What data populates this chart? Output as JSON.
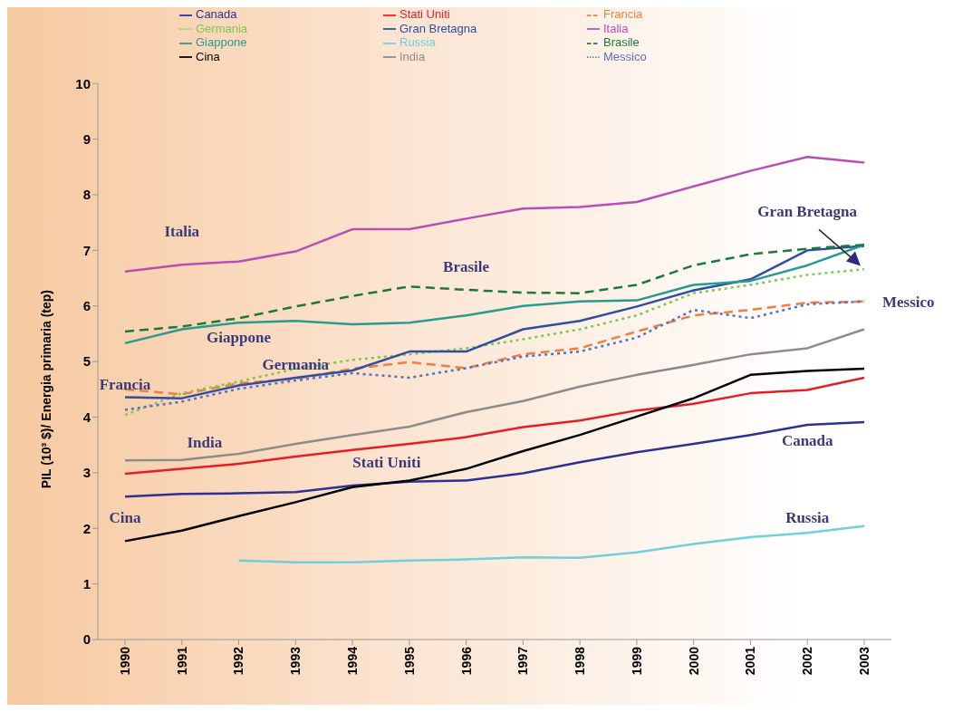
{
  "chart_data": {
    "type": "line",
    "ylabel": "PIL (10³ $)/ Energia primaria (tep)",
    "categories": [
      "1990",
      "1991",
      "1992",
      "1993",
      "1994",
      "1995",
      "1996",
      "1997",
      "1998",
      "1999",
      "2000",
      "2001",
      "2002",
      "2003"
    ],
    "ylim": [
      0,
      10
    ],
    "yticks": [
      0,
      1,
      2,
      3,
      4,
      5,
      6,
      7,
      8,
      9,
      10
    ],
    "grid": false,
    "legend": "top",
    "marker": "none",
    "series": [
      {
        "name": "Canada",
        "color": "#2e3192",
        "values": [
          2.57,
          2.62,
          2.63,
          2.65,
          2.77,
          2.84,
          2.86,
          2.99,
          3.19,
          3.37,
          3.52,
          3.68,
          3.86,
          3.91
        ]
      },
      {
        "name": "Stati Uniti",
        "color": "#e41e26",
        "values": [
          2.98,
          3.07,
          3.16,
          3.29,
          3.41,
          3.52,
          3.64,
          3.82,
          3.94,
          4.12,
          4.24,
          4.43,
          4.49,
          4.71
        ]
      },
      {
        "name": "Francia",
        "color": "#f07f3c",
        "line_style": "dashed",
        "values": [
          4.5,
          4.41,
          4.61,
          4.69,
          4.87,
          4.99,
          4.88,
          5.13,
          5.24,
          5.54,
          5.83,
          5.93,
          6.06,
          6.08
        ]
      },
      {
        "name": "Germania",
        "color": "#7ec850",
        "line_style": "dotted",
        "values": [
          4.04,
          4.43,
          4.64,
          4.87,
          5.03,
          5.13,
          5.24,
          5.4,
          5.58,
          5.83,
          6.23,
          6.38,
          6.56,
          6.66
        ]
      },
      {
        "name": "Gran Bretagna",
        "color": "#2e4ea0",
        "values": [
          4.36,
          4.34,
          4.57,
          4.71,
          4.84,
          5.18,
          5.18,
          5.58,
          5.73,
          5.99,
          6.28,
          6.48,
          7.0,
          7.08
        ]
      },
      {
        "name": "Italia",
        "color": "#b84fb5",
        "values": [
          6.62,
          6.74,
          6.8,
          6.98,
          7.38,
          7.38,
          7.57,
          7.75,
          7.78,
          7.87,
          8.15,
          8.43,
          8.68,
          8.58
        ]
      },
      {
        "name": "Giappone",
        "color": "#2a9a8e",
        "values": [
          5.33,
          5.58,
          5.7,
          5.73,
          5.67,
          5.7,
          5.83,
          6.0,
          6.08,
          6.1,
          6.38,
          6.45,
          6.73,
          7.1
        ]
      },
      {
        "name": "Russia",
        "color": "#6fcfdc",
        "values": [
          null,
          null,
          1.42,
          1.39,
          1.39,
          1.42,
          1.44,
          1.48,
          1.47,
          1.57,
          1.72,
          1.84,
          1.92,
          2.04
        ]
      },
      {
        "name": "Brasile",
        "color": "#1b7a3a",
        "line_style": "dashed",
        "values": [
          5.54,
          5.63,
          5.78,
          5.99,
          6.18,
          6.35,
          6.29,
          6.24,
          6.23,
          6.38,
          6.73,
          6.93,
          7.03,
          7.1
        ]
      },
      {
        "name": "Cina",
        "color": "#000000",
        "values": [
          1.77,
          1.96,
          2.22,
          2.47,
          2.74,
          2.86,
          3.07,
          3.39,
          3.68,
          4.01,
          4.34,
          4.76,
          4.83,
          4.87
        ]
      },
      {
        "name": "India",
        "color": "#8c8c8c",
        "values": [
          3.22,
          3.23,
          3.34,
          3.52,
          3.68,
          3.83,
          4.09,
          4.29,
          4.55,
          4.76,
          4.94,
          5.13,
          5.24,
          5.58
        ]
      },
      {
        "name": "Messico",
        "color": "#5a6fc0",
        "line_style": "dotted",
        "values": [
          4.13,
          4.28,
          4.51,
          4.66,
          4.79,
          4.71,
          4.88,
          5.09,
          5.18,
          5.43,
          5.93,
          5.78,
          6.03,
          6.08
        ]
      }
    ],
    "annotations": [
      "Italia",
      "Brasile",
      "Giappone",
      {
        "text": "Germania",
        "x": "1993",
        "y": 4.95
      },
      {
        "text": "Francia",
        "x": "1990",
        "y": 4.6
      },
      "India",
      "Stati Uniti",
      "Cina",
      "Canada",
      "Russia",
      {
        "text": "Messico",
        "x": "2003",
        "y": 6.08
      },
      "Gran Bretagna"
    ]
  }
}
